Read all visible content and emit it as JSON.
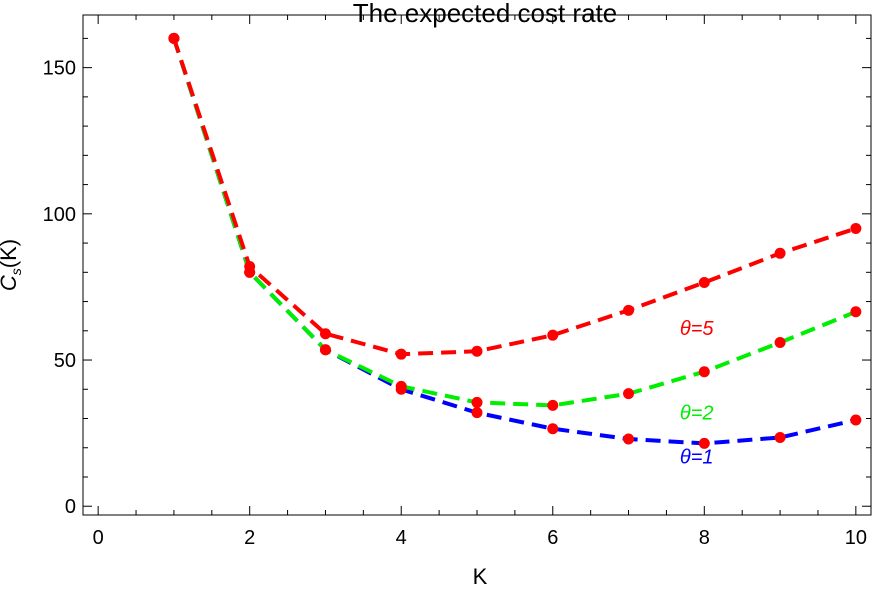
{
  "chart_data": {
    "type": "line",
    "title": "The expected cost rate",
    "xlabel": "K",
    "ylabel_main": "C",
    "ylabel_sub": "s",
    "ylabel_tail": "(K)",
    "xlim": [
      -0.2,
      10.2
    ],
    "ylim": [
      -3,
      168
    ],
    "xticks": [
      0,
      2,
      4,
      6,
      8,
      10
    ],
    "yticks": [
      0,
      50,
      100,
      150
    ],
    "grid": false,
    "marker_color": "#ff0000",
    "series": [
      {
        "name": "θ=1",
        "label": "θ=1",
        "color": "#0000ff",
        "label_at": [
          7.9,
          17
        ],
        "x": [
          1,
          2,
          3,
          4,
          5,
          6,
          7,
          8,
          9,
          10
        ],
        "values": [
          160,
          80,
          53.5,
          40,
          32,
          26.5,
          23,
          21.5,
          23.5,
          29.5
        ]
      },
      {
        "name": "θ=2",
        "label": "θ=2",
        "color": "#00ee00",
        "label_at": [
          7.9,
          32
        ],
        "x": [
          1,
          2,
          3,
          4,
          5,
          6,
          7,
          8,
          9,
          10
        ],
        "values": [
          160,
          80,
          53.5,
          41,
          35.5,
          34.5,
          38.5,
          46,
          56,
          66.5
        ]
      },
      {
        "name": "θ=5",
        "label": "θ=5",
        "color": "#ff0000",
        "label_at": [
          7.9,
          61
        ],
        "x": [
          1,
          2,
          3,
          4,
          5,
          6,
          7,
          8,
          9,
          10
        ],
        "values": [
          160,
          82,
          59,
          52,
          53,
          58.5,
          67,
          76.5,
          86.5,
          95
        ]
      }
    ]
  }
}
